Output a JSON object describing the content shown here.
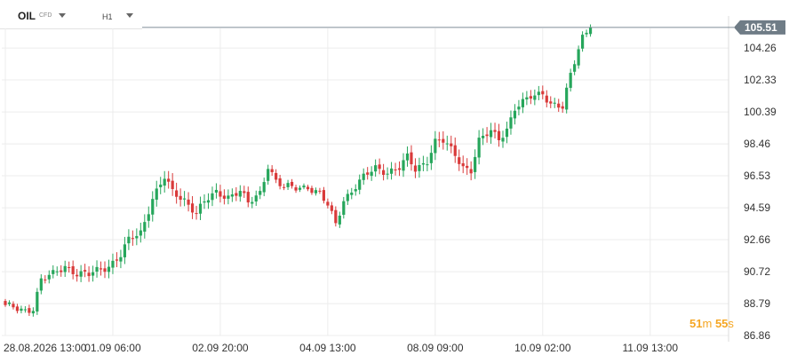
{
  "toolbar": {
    "symbol": "OIL",
    "symbol_type": "CFD",
    "timeframe": "H1",
    "symbol_dropdown_icon": "chevron-down-icon",
    "timeframe_dropdown_icon": "chevron-down-icon"
  },
  "countdown": {
    "minutes": "51",
    "minutes_unit": "m",
    "seconds": "55",
    "seconds_unit": "s"
  },
  "chart_data": {
    "type": "candlestick",
    "title": "",
    "xlabel": "",
    "ylabel": "",
    "ylim": [
      86.86,
      106.2
    ],
    "y_ticks": [
      "104.26",
      "102.33",
      "100.39",
      "98.46",
      "96.53",
      "94.59",
      "92.66",
      "90.72",
      "88.79",
      "86.86"
    ],
    "x_ticks": [
      "28.08.2026 13:00",
      "01.09 06:00",
      "02.09 20:00",
      "04.09 13:00",
      "08.09 09:00",
      "10.09 02:00",
      "11.09 13:00"
    ],
    "x_tick_bars": [
      0,
      27,
      54,
      81,
      108,
      135,
      162
    ],
    "current_price": "105.51",
    "current_price_value": 105.51,
    "colors": {
      "up": "#26a65b",
      "down": "#d93a3a",
      "grid": "#ececec",
      "price_line": "#7f8c96",
      "price_tag": "#6f7c86"
    },
    "grid": true,
    "close_anchors": [
      [
        0,
        88.6
      ],
      [
        5,
        88.4
      ],
      [
        7,
        88.55
      ],
      [
        9,
        90.2
      ],
      [
        12,
        90.55
      ],
      [
        15,
        91.1
      ],
      [
        18,
        90.6
      ],
      [
        21,
        90.5
      ],
      [
        23,
        90.8
      ],
      [
        26,
        91.1
      ],
      [
        29,
        91.7
      ],
      [
        31,
        92.6
      ],
      [
        34,
        93.1
      ],
      [
        37,
        95.2
      ],
      [
        40,
        96.4
      ],
      [
        42,
        95.5
      ],
      [
        45,
        95.1
      ],
      [
        48,
        94.3
      ],
      [
        50,
        94.9
      ],
      [
        53,
        95.5
      ],
      [
        56,
        95.3
      ],
      [
        59,
        95.6
      ],
      [
        61,
        94.8
      ],
      [
        64,
        95.5
      ],
      [
        66,
        97.2
      ],
      [
        68,
        96.2
      ],
      [
        70,
        95.8
      ],
      [
        73,
        95.8
      ],
      [
        76,
        95.9
      ],
      [
        79,
        95.4
      ],
      [
        81,
        94.7
      ],
      [
        83,
        93.6
      ],
      [
        85,
        95.1
      ],
      [
        88,
        95.9
      ],
      [
        90,
        96.4
      ],
      [
        93,
        97.0
      ],
      [
        96,
        96.8
      ],
      [
        99,
        97.0
      ],
      [
        101,
        97.6
      ],
      [
        103,
        96.9
      ],
      [
        106,
        97.5
      ],
      [
        108,
        98.6
      ],
      [
        110,
        98.6
      ],
      [
        113,
        97.8
      ],
      [
        115,
        97.1
      ],
      [
        117,
        96.9
      ],
      [
        119,
        98.6
      ],
      [
        122,
        99.2
      ],
      [
        124,
        98.8
      ],
      [
        126,
        99.4
      ],
      [
        128,
        100.6
      ],
      [
        130,
        100.9
      ],
      [
        132,
        101.3
      ],
      [
        135,
        101.6
      ],
      [
        137,
        100.9
      ],
      [
        140,
        100.6
      ],
      [
        142,
        102.6
      ],
      [
        144,
        104.3
      ],
      [
        145,
        105.0
      ],
      [
        146,
        105.3
      ],
      [
        147,
        105.51
      ]
    ]
  }
}
